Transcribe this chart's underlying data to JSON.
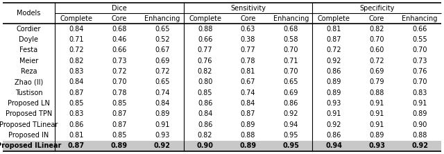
{
  "col_groups": [
    {
      "label": "Dice",
      "subcols": [
        "Complete",
        "Core",
        "Enhancing"
      ]
    },
    {
      "label": "Sensitivity",
      "subcols": [
        "Complete",
        "Core",
        "Enhancing"
      ]
    },
    {
      "label": "Specificity",
      "subcols": [
        "Complete",
        "Core",
        "Enhancing"
      ]
    }
  ],
  "models": [
    "Cordier",
    "Doyle",
    "Festa",
    "Meier",
    "Reza",
    "Zhao (II)",
    "Tustison",
    "Proposed LN",
    "Proposed TPN",
    "Proposed TLinear",
    "Proposed IN",
    "Proposed ILinear"
  ],
  "data": [
    [
      0.84,
      0.68,
      0.65,
      0.88,
      0.63,
      0.68,
      0.81,
      0.82,
      0.66
    ],
    [
      0.71,
      0.46,
      0.52,
      0.66,
      0.38,
      0.58,
      0.87,
      0.7,
      0.55
    ],
    [
      0.72,
      0.66,
      0.67,
      0.77,
      0.77,
      0.7,
      0.72,
      0.6,
      0.7
    ],
    [
      0.82,
      0.73,
      0.69,
      0.76,
      0.78,
      0.71,
      0.92,
      0.72,
      0.73
    ],
    [
      0.83,
      0.72,
      0.72,
      0.82,
      0.81,
      0.7,
      0.86,
      0.69,
      0.76
    ],
    [
      0.84,
      0.7,
      0.65,
      0.8,
      0.67,
      0.65,
      0.89,
      0.79,
      0.7
    ],
    [
      0.87,
      0.78,
      0.74,
      0.85,
      0.74,
      0.69,
      0.89,
      0.88,
      0.83
    ],
    [
      0.85,
      0.85,
      0.84,
      0.86,
      0.84,
      0.86,
      0.93,
      0.91,
      0.91
    ],
    [
      0.83,
      0.87,
      0.89,
      0.84,
      0.87,
      0.92,
      0.91,
      0.91,
      0.89
    ],
    [
      0.86,
      0.87,
      0.91,
      0.86,
      0.89,
      0.94,
      0.92,
      0.91,
      0.9
    ],
    [
      0.81,
      0.85,
      0.93,
      0.82,
      0.88,
      0.95,
      0.86,
      0.89,
      0.88
    ],
    [
      0.87,
      0.89,
      0.92,
      0.9,
      0.89,
      0.95,
      0.94,
      0.93,
      0.92
    ]
  ],
  "last_row_bg": "#c8c8c8",
  "header_bg": "#ffffff",
  "fontsize": 7.0,
  "header_fontsize": 7.0,
  "title_col": "Models",
  "fig_width": 6.4,
  "fig_height": 2.22,
  "dpi": 100
}
